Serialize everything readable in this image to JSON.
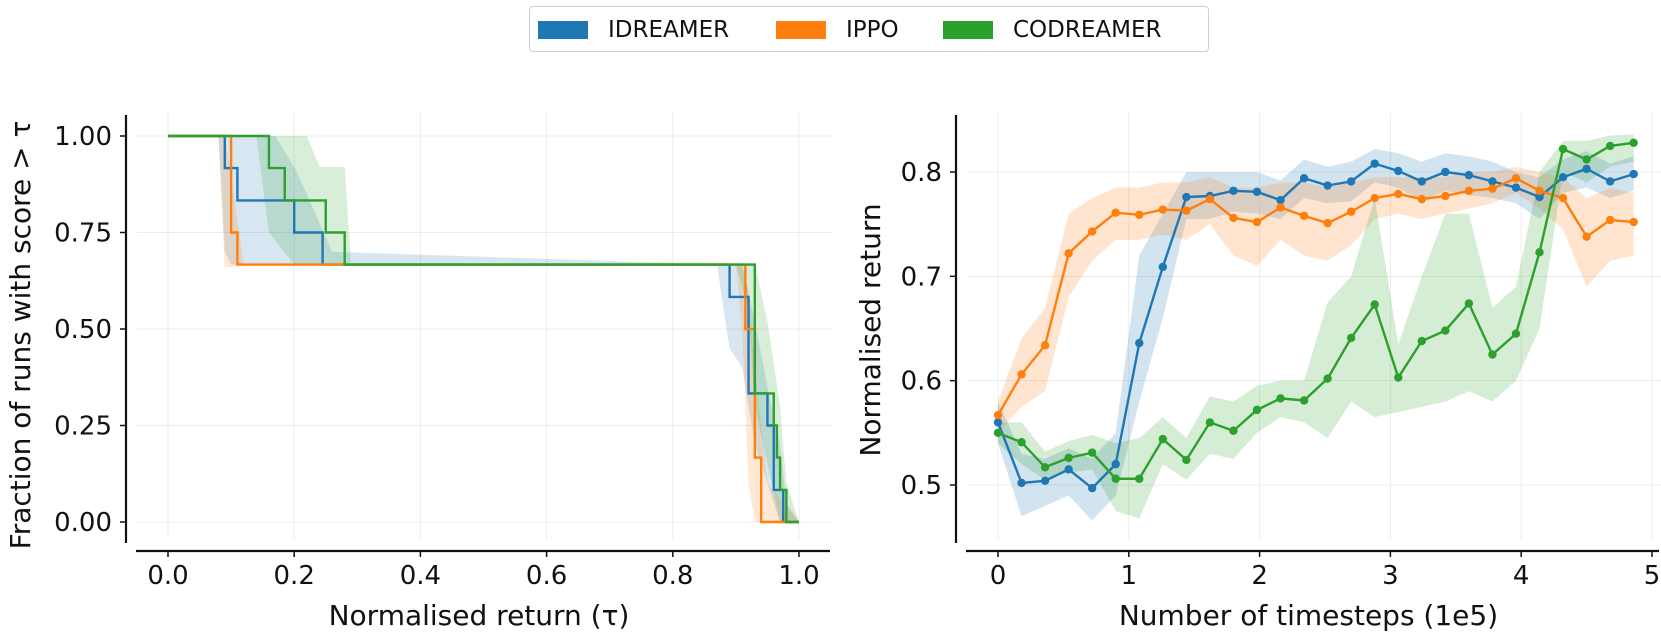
{
  "legend": {
    "items": [
      {
        "label": "IDREAMER",
        "color": "#1f77b4"
      },
      {
        "label": "IPPO",
        "color": "#ff7f0e"
      },
      {
        "label": "CODREAMER",
        "color": "#2ca02c"
      }
    ]
  },
  "chart_data": [
    {
      "type": "line",
      "title": "",
      "xlabel": "Normalised return (τ)",
      "ylabel": "Fraction of runs with score > τ",
      "xlim": [
        -0.05,
        1.05
      ],
      "ylim": [
        -0.05,
        1.05
      ],
      "xticks": [
        0.0,
        0.2,
        0.4,
        0.6,
        0.8,
        1.0
      ],
      "xtick_labels": [
        "0.0",
        "0.2",
        "0.4",
        "0.6",
        "0.8",
        "1.0"
      ],
      "yticks": [
        0.0,
        0.25,
        0.5,
        0.75,
        1.0
      ],
      "ytick_labels": [
        "0.00",
        "0.25",
        "0.50",
        "0.75",
        "1.00"
      ],
      "grid": true,
      "step": true,
      "series": [
        {
          "name": "IDREAMER",
          "color": "#1f77b4",
          "x": [
            0.0,
            0.085,
            0.09,
            0.1,
            0.11,
            0.19,
            0.2,
            0.24,
            0.245,
            0.88,
            0.89,
            0.91,
            0.92,
            0.94,
            0.95,
            0.96,
            0.97,
            0.975,
            0.98,
            1.0
          ],
          "y": [
            1.0,
            1.0,
            0.917,
            0.917,
            0.833,
            0.833,
            0.75,
            0.75,
            0.667,
            0.667,
            0.583,
            0.583,
            0.333,
            0.333,
            0.25,
            0.083,
            0.083,
            0.0,
            0.0,
            0.0
          ],
          "band_x": [
            0.0,
            0.08,
            0.09,
            0.1,
            0.14,
            0.17,
            0.2,
            0.22,
            0.26,
            0.87,
            0.89,
            0.91,
            0.93,
            0.95,
            0.97,
            0.98,
            1.0
          ],
          "band_lo": [
            1.0,
            1.0,
            0.7,
            0.667,
            0.667,
            0.667,
            0.667,
            0.667,
            0.667,
            0.667,
            0.45,
            0.4,
            0.2,
            0.1,
            0.0,
            0.0,
            0.0
          ],
          "band_hi": [
            1.0,
            1.0,
            1.0,
            1.0,
            1.0,
            1.0,
            0.92,
            0.85,
            0.7,
            0.667,
            0.667,
            0.667,
            0.52,
            0.35,
            0.2,
            0.05,
            0.0
          ]
        },
        {
          "name": "IPPO",
          "color": "#ff7f0e",
          "x": [
            0.0,
            0.085,
            0.1,
            0.11,
            0.905,
            0.91,
            0.915,
            0.93,
            0.94,
            0.97,
            1.0
          ],
          "y": [
            1.0,
            1.0,
            0.75,
            0.667,
            0.667,
            0.667,
            0.5,
            0.167,
            0.0,
            0.0,
            0.0
          ],
          "band_x": [
            0.0,
            0.08,
            0.09,
            0.1,
            0.12,
            0.9,
            0.91,
            0.92,
            0.93,
            0.95,
            1.0
          ],
          "band_lo": [
            1.0,
            1.0,
            0.66,
            0.66,
            0.667,
            0.667,
            0.5,
            0.1,
            0.0,
            0.0,
            0.0
          ],
          "band_hi": [
            1.0,
            1.0,
            1.0,
            0.9,
            0.667,
            0.667,
            0.667,
            0.6,
            0.4,
            0.1,
            0.0
          ]
        },
        {
          "name": "CODREAMER",
          "color": "#2ca02c",
          "x": [
            0.0,
            0.15,
            0.16,
            0.17,
            0.185,
            0.19,
            0.24,
            0.25,
            0.27,
            0.28,
            0.91,
            0.92,
            0.93,
            0.95,
            0.96,
            0.965,
            0.97,
            0.98,
            0.99,
            1.0
          ],
          "y": [
            1.0,
            1.0,
            0.917,
            0.917,
            0.833,
            0.833,
            0.833,
            0.75,
            0.75,
            0.667,
            0.667,
            0.667,
            0.333,
            0.333,
            0.25,
            0.167,
            0.083,
            0.0,
            0.0,
            0.0
          ],
          "band_x": [
            0.0,
            0.14,
            0.16,
            0.2,
            0.22,
            0.24,
            0.28,
            0.29,
            0.9,
            0.92,
            0.93,
            0.95,
            0.97,
            0.98,
            1.0
          ],
          "band_lo": [
            1.0,
            1.0,
            0.75,
            0.667,
            0.667,
            0.667,
            0.667,
            0.667,
            0.667,
            0.55,
            0.3,
            0.15,
            0.0,
            0.0,
            0.0
          ],
          "band_hi": [
            1.0,
            1.0,
            1.0,
            1.0,
            1.0,
            0.92,
            0.92,
            0.667,
            0.667,
            0.667,
            0.667,
            0.52,
            0.3,
            0.1,
            0.0
          ]
        }
      ]
    },
    {
      "type": "line",
      "title": "",
      "xlabel": "Number of timesteps (1e5)",
      "ylabel": "Normalised return",
      "xlim": [
        -0.25,
        5.0
      ],
      "ylim": [
        0.45,
        0.85
      ],
      "xticks": [
        0,
        1,
        2,
        3,
        4,
        5
      ],
      "xtick_labels": [
        "0",
        "1",
        "2",
        "3",
        "4",
        "5"
      ],
      "yticks": [
        0.5,
        0.6,
        0.7,
        0.8
      ],
      "ytick_labels": [
        "0.5",
        "0.6",
        "0.7",
        "0.8"
      ],
      "grid": true,
      "x": [
        0.0,
        0.18,
        0.36,
        0.54,
        0.72,
        0.9,
        1.08,
        1.26,
        1.44,
        1.62,
        1.8,
        1.98,
        2.16,
        2.34,
        2.52,
        2.7,
        2.88,
        3.06,
        3.24,
        3.42,
        3.6,
        3.78,
        3.96,
        4.14,
        4.32,
        4.5,
        4.68,
        4.86
      ],
      "series": [
        {
          "name": "IDREAMER",
          "color": "#1f77b4",
          "values": [
            0.56,
            0.502,
            0.504,
            0.515,
            0.497,
            0.52,
            0.636,
            0.709,
            0.776,
            0.777,
            0.782,
            0.781,
            0.773,
            0.794,
            0.787,
            0.791,
            0.808,
            0.801,
            0.791,
            0.8,
            0.797,
            0.791,
            0.785,
            0.776,
            0.795,
            0.803,
            0.791,
            0.798
          ],
          "lo": [
            0.54,
            0.47,
            0.48,
            0.49,
            0.466,
            0.49,
            0.58,
            0.66,
            0.755,
            0.755,
            0.762,
            0.76,
            0.755,
            0.775,
            0.77,
            0.772,
            0.79,
            0.785,
            0.772,
            0.782,
            0.778,
            0.775,
            0.77,
            0.755,
            0.78,
            0.785,
            0.775,
            0.782
          ],
          "hi": [
            0.58,
            0.53,
            0.525,
            0.535,
            0.525,
            0.55,
            0.72,
            0.76,
            0.8,
            0.8,
            0.8,
            0.8,
            0.792,
            0.812,
            0.805,
            0.81,
            0.822,
            0.818,
            0.81,
            0.818,
            0.815,
            0.81,
            0.8,
            0.795,
            0.812,
            0.82,
            0.808,
            0.815
          ]
        },
        {
          "name": "IPPO",
          "color": "#ff7f0e",
          "values": [
            0.567,
            0.606,
            0.634,
            0.722,
            0.743,
            0.761,
            0.759,
            0.764,
            0.763,
            0.774,
            0.756,
            0.752,
            0.766,
            0.758,
            0.751,
            0.762,
            0.775,
            0.779,
            0.774,
            0.777,
            0.782,
            0.784,
            0.794,
            0.782,
            0.775,
            0.738,
            0.754,
            0.752
          ],
          "lo": [
            0.55,
            0.575,
            0.59,
            0.68,
            0.715,
            0.735,
            0.735,
            0.74,
            0.735,
            0.75,
            0.72,
            0.71,
            0.735,
            0.72,
            0.715,
            0.73,
            0.755,
            0.76,
            0.755,
            0.76,
            0.765,
            0.77,
            0.78,
            0.765,
            0.745,
            0.69,
            0.715,
            0.72
          ],
          "hi": [
            0.58,
            0.64,
            0.67,
            0.76,
            0.775,
            0.785,
            0.785,
            0.79,
            0.79,
            0.795,
            0.785,
            0.785,
            0.79,
            0.79,
            0.785,
            0.79,
            0.795,
            0.795,
            0.795,
            0.795,
            0.8,
            0.8,
            0.805,
            0.8,
            0.795,
            0.775,
            0.785,
            0.78
          ]
        },
        {
          "name": "CODREAMER",
          "color": "#2ca02c",
          "values": [
            0.55,
            0.541,
            0.517,
            0.526,
            0.531,
            0.506,
            0.506,
            0.544,
            0.524,
            0.56,
            0.552,
            0.572,
            0.583,
            0.581,
            0.602,
            0.641,
            0.673,
            0.603,
            0.638,
            0.648,
            0.674,
            0.625,
            0.645,
            0.723,
            0.822,
            0.812,
            0.825,
            0.828
          ],
          "lo": [
            0.54,
            0.52,
            0.505,
            0.512,
            0.515,
            0.475,
            0.468,
            0.52,
            0.505,
            0.53,
            0.525,
            0.55,
            0.565,
            0.56,
            0.545,
            0.58,
            0.565,
            0.57,
            0.575,
            0.58,
            0.59,
            0.58,
            0.6,
            0.65,
            0.8,
            0.79,
            0.805,
            0.81
          ],
          "hi": [
            0.56,
            0.56,
            0.532,
            0.542,
            0.548,
            0.54,
            0.545,
            0.565,
            0.545,
            0.585,
            0.58,
            0.595,
            0.6,
            0.6,
            0.675,
            0.7,
            0.775,
            0.635,
            0.7,
            0.76,
            0.76,
            0.67,
            0.69,
            0.8,
            0.83,
            0.83,
            0.835,
            0.836
          ]
        }
      ]
    }
  ]
}
